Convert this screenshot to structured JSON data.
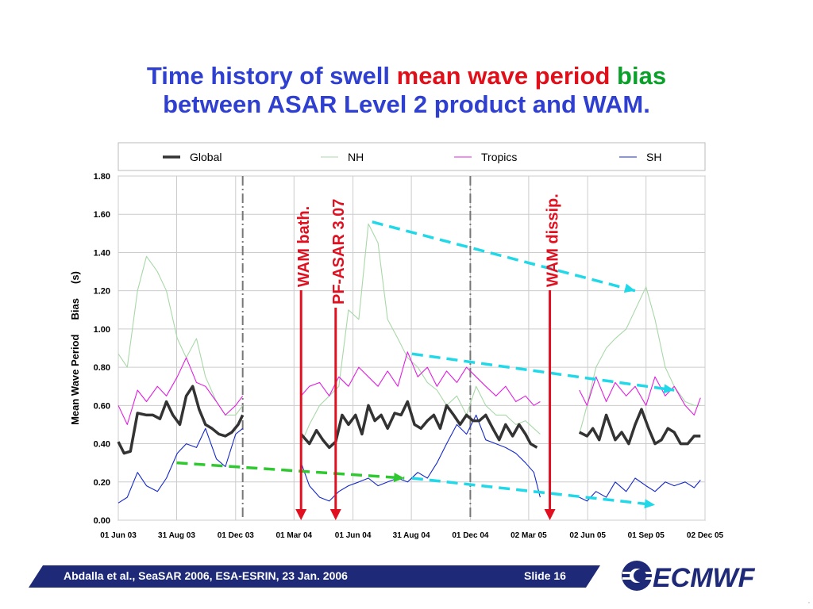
{
  "slide": {
    "title_line1_part1": "Time history of swell",
    "title_line1_part2": "mean wave period",
    "title_line1_part3": "bias",
    "title_line2": "between ASAR Level 2 product and WAM."
  },
  "footer": {
    "citation": "Abdalla et al.,  SeaSAR 2006,  ESA-ESRIN,  23 Jan. 2006",
    "slide_number": "Slide 16",
    "logo_text": "ECMWF"
  },
  "chart_data": {
    "type": "line",
    "title": "",
    "xlabel": "",
    "ylabel": "Mean Wave Period     Bias     (s)",
    "ylim": [
      0.0,
      1.8
    ],
    "yticks": [
      "0.00",
      "0.20",
      "0.40",
      "0.60",
      "0.80",
      "1.00",
      "1.20",
      "1.40",
      "1.60",
      "1.80"
    ],
    "xlim": [
      "2003-06-01",
      "2005-12-02"
    ],
    "xticks": [
      {
        "date": "2003-06-01",
        "label": "01 Jun 03"
      },
      {
        "date": "2003-08-31",
        "label": "31 Aug 03"
      },
      {
        "date": "2003-12-01",
        "label": "01 Dec 03"
      },
      {
        "date": "2004-03-01",
        "label": "01 Mar 04"
      },
      {
        "date": "2004-06-01",
        "label": "01 Jun 04"
      },
      {
        "date": "2004-08-31",
        "label": "31 Aug 04"
      },
      {
        "date": "2004-12-01",
        "label": "01 Dec 04"
      },
      {
        "date": "2005-03-02",
        "label": "02 Mar 05"
      },
      {
        "date": "2005-06-02",
        "label": "02 Jun 05"
      },
      {
        "date": "2005-09-01",
        "label": "01 Sep 05"
      },
      {
        "date": "2005-12-02",
        "label": "02 Dec 05"
      }
    ],
    "grid": true,
    "legend_position": "top",
    "series": [
      {
        "name": "Global",
        "color": "#333333",
        "x": [
          "2003-06-01",
          "2003-06-10",
          "2003-06-20",
          "2003-07-01",
          "2003-07-15",
          "2003-07-25",
          "2003-08-05",
          "2003-08-15",
          "2003-08-25",
          "2003-09-05",
          "2003-09-15",
          "2003-09-25",
          "2003-10-05",
          "2003-10-15",
          "2003-10-25",
          "2003-11-05",
          "2003-11-15",
          "2003-11-25",
          "2003-12-05",
          "2003-12-12",
          null,
          "2004-03-12",
          "2004-03-25",
          "2004-04-05",
          "2004-04-15",
          "2004-04-25",
          "2004-05-05",
          "2004-05-15",
          "2004-05-25",
          "2004-06-05",
          "2004-06-15",
          "2004-06-25",
          "2004-07-05",
          "2004-07-15",
          "2004-07-25",
          "2004-08-05",
          "2004-08-15",
          "2004-08-25",
          "2004-09-05",
          "2004-09-15",
          "2004-09-25",
          "2004-10-05",
          "2004-10-15",
          "2004-10-25",
          "2004-11-05",
          "2004-11-15",
          "2004-11-25",
          "2004-12-05",
          "2004-12-15",
          "2004-12-25",
          "2005-01-05",
          "2005-01-15",
          "2005-01-25",
          "2005-02-05",
          "2005-02-15",
          "2005-02-25",
          "2005-03-05",
          "2005-03-15",
          null,
          "2005-05-20",
          "2005-06-01",
          "2005-06-10",
          "2005-06-20",
          "2005-07-01",
          "2005-07-15",
          "2005-07-25",
          "2005-08-05",
          "2005-08-15",
          "2005-08-25",
          "2005-09-05",
          "2005-09-15",
          "2005-09-25",
          "2005-10-05",
          "2005-10-15",
          "2005-10-25",
          "2005-11-05",
          "2005-11-15",
          "2005-11-25"
        ],
        "values": [
          0.41,
          0.35,
          0.36,
          0.56,
          0.55,
          0.55,
          0.53,
          0.62,
          0.55,
          0.5,
          0.65,
          0.7,
          0.58,
          0.5,
          0.48,
          0.45,
          0.44,
          0.46,
          0.5,
          0.55,
          null,
          0.45,
          0.4,
          0.47,
          0.42,
          0.38,
          0.41,
          0.55,
          0.5,
          0.55,
          0.45,
          0.6,
          0.52,
          0.55,
          0.48,
          0.56,
          0.55,
          0.62,
          0.5,
          0.48,
          0.52,
          0.55,
          0.48,
          0.6,
          0.55,
          0.5,
          0.55,
          0.52,
          0.52,
          0.55,
          0.48,
          0.42,
          0.5,
          0.44,
          0.5,
          0.45,
          0.4,
          0.38,
          null,
          0.46,
          0.44,
          0.48,
          0.42,
          0.55,
          0.42,
          0.46,
          0.4,
          0.5,
          0.58,
          0.48,
          0.4,
          0.42,
          0.48,
          0.46,
          0.4,
          0.4,
          0.44,
          0.44
        ]
      },
      {
        "name": "NH",
        "color": "#a8d8a8",
        "x": [
          "2003-06-01",
          "2003-06-15",
          "2003-07-01",
          "2003-07-15",
          "2003-08-01",
          "2003-08-15",
          "2003-09-01",
          "2003-09-15",
          "2003-10-01",
          "2003-10-15",
          "2003-11-01",
          "2003-11-15",
          "2003-12-01",
          "2003-12-12",
          null,
          "2004-03-12",
          "2004-03-25",
          "2004-04-10",
          "2004-04-25",
          "2004-05-10",
          "2004-05-25",
          "2004-06-10",
          "2004-06-25",
          "2004-07-10",
          "2004-07-25",
          "2004-08-10",
          "2004-08-25",
          "2004-09-10",
          "2004-09-25",
          "2004-10-10",
          "2004-10-25",
          "2004-11-10",
          "2004-11-25",
          "2004-12-10",
          "2004-12-25",
          "2005-01-10",
          "2005-01-25",
          "2005-02-10",
          "2005-02-25",
          "2005-03-10",
          "2005-03-20",
          null,
          "2005-05-20",
          "2005-06-01",
          "2005-06-15",
          "2005-07-01",
          "2005-07-15",
          "2005-08-01",
          "2005-08-15",
          "2005-09-01",
          "2005-09-15",
          "2005-10-01",
          "2005-10-15",
          "2005-11-01",
          "2005-11-15",
          "2005-11-25"
        ],
        "values": [
          0.87,
          0.8,
          1.2,
          1.38,
          1.3,
          1.2,
          0.95,
          0.85,
          0.95,
          0.75,
          0.62,
          0.55,
          0.55,
          0.6,
          null,
          0.4,
          0.5,
          0.6,
          0.65,
          0.7,
          1.1,
          1.05,
          1.55,
          1.45,
          1.05,
          0.95,
          0.85,
          0.8,
          0.72,
          0.68,
          0.6,
          0.65,
          0.55,
          0.7,
          0.6,
          0.55,
          0.55,
          0.5,
          0.52,
          0.48,
          0.45,
          null,
          0.45,
          0.6,
          0.8,
          0.9,
          0.95,
          1.0,
          1.1,
          1.22,
          1.05,
          0.8,
          0.7,
          0.62,
          0.6,
          0.6
        ]
      },
      {
        "name": "Tropics",
        "color": "#e020e0",
        "x": [
          "2003-06-01",
          "2003-06-15",
          "2003-07-01",
          "2003-07-15",
          "2003-08-01",
          "2003-08-15",
          "2003-09-01",
          "2003-09-15",
          "2003-10-01",
          "2003-10-15",
          "2003-11-01",
          "2003-11-15",
          "2003-12-01",
          "2003-12-12",
          null,
          "2004-03-12",
          "2004-03-25",
          "2004-04-10",
          "2004-04-25",
          "2004-05-10",
          "2004-05-25",
          "2004-06-10",
          "2004-06-25",
          "2004-07-10",
          "2004-07-25",
          "2004-08-10",
          "2004-08-25",
          "2004-09-10",
          "2004-09-25",
          "2004-10-10",
          "2004-10-25",
          "2004-11-10",
          "2004-11-25",
          "2004-12-10",
          "2004-12-25",
          "2005-01-10",
          "2005-01-25",
          "2005-02-10",
          "2005-02-25",
          "2005-03-10",
          "2005-03-20",
          null,
          "2005-05-20",
          "2005-06-01",
          "2005-06-15",
          "2005-07-01",
          "2005-07-15",
          "2005-08-01",
          "2005-08-15",
          "2005-09-01",
          "2005-09-15",
          "2005-10-01",
          "2005-10-15",
          "2005-11-01",
          "2005-11-15",
          "2005-11-25"
        ],
        "values": [
          0.6,
          0.5,
          0.68,
          0.62,
          0.7,
          0.65,
          0.75,
          0.85,
          0.72,
          0.7,
          0.62,
          0.55,
          0.6,
          0.65,
          null,
          0.65,
          0.7,
          0.72,
          0.65,
          0.75,
          0.7,
          0.8,
          0.75,
          0.7,
          0.78,
          0.7,
          0.88,
          0.75,
          0.8,
          0.7,
          0.78,
          0.72,
          0.8,
          0.75,
          0.7,
          0.65,
          0.7,
          0.62,
          0.65,
          0.6,
          0.62,
          null,
          0.68,
          0.6,
          0.75,
          0.62,
          0.72,
          0.65,
          0.7,
          0.6,
          0.75,
          0.65,
          0.7,
          0.6,
          0.55,
          0.64
        ]
      },
      {
        "name": "SH",
        "color": "#1428c8",
        "x": [
          "2003-06-01",
          "2003-06-15",
          "2003-07-01",
          "2003-07-15",
          "2003-08-01",
          "2003-08-15",
          "2003-09-01",
          "2003-09-15",
          "2003-10-01",
          "2003-10-15",
          "2003-11-01",
          "2003-11-15",
          "2003-12-01",
          "2003-12-12",
          null,
          "2004-03-12",
          "2004-03-25",
          "2004-04-10",
          "2004-04-25",
          "2004-05-10",
          "2004-05-25",
          "2004-06-10",
          "2004-06-25",
          "2004-07-10",
          "2004-07-25",
          "2004-08-10",
          "2004-08-25",
          "2004-09-10",
          "2004-09-25",
          "2004-10-10",
          "2004-10-25",
          "2004-11-10",
          "2004-11-25",
          "2004-12-10",
          "2004-12-25",
          "2005-01-10",
          "2005-01-25",
          "2005-02-10",
          "2005-02-25",
          "2005-03-10",
          "2005-03-20",
          null,
          "2005-05-20",
          "2005-06-01",
          "2005-06-15",
          "2005-07-01",
          "2005-07-15",
          "2005-08-01",
          "2005-08-15",
          "2005-09-01",
          "2005-09-15",
          "2005-10-01",
          "2005-10-15",
          "2005-11-01",
          "2005-11-15",
          "2005-11-25"
        ],
        "values": [
          0.09,
          0.12,
          0.25,
          0.18,
          0.15,
          0.22,
          0.35,
          0.4,
          0.38,
          0.48,
          0.32,
          0.28,
          0.45,
          0.48,
          null,
          0.3,
          0.18,
          0.12,
          0.1,
          0.15,
          0.18,
          0.2,
          0.22,
          0.18,
          0.2,
          0.22,
          0.2,
          0.25,
          0.22,
          0.3,
          0.4,
          0.5,
          0.45,
          0.55,
          0.42,
          0.4,
          0.38,
          0.35,
          0.3,
          0.25,
          0.12,
          null,
          0.12,
          0.1,
          0.15,
          0.12,
          0.2,
          0.15,
          0.22,
          0.18,
          0.15,
          0.2,
          0.18,
          0.2,
          0.17,
          0.21
        ]
      }
    ],
    "event_markers": [
      {
        "date": "2003-12-12",
        "style": "dash-dot",
        "color": "#777777"
      },
      {
        "date": "2004-12-01",
        "style": "dash-dot",
        "color": "#777777"
      }
    ],
    "annotations": [
      {
        "text": "WAM bath.",
        "date": "2004-03-12",
        "color": "#e01020"
      },
      {
        "text": "PF-ASAR 3.07",
        "date": "2004-05-05",
        "color": "#e01020"
      },
      {
        "text": "WAM dissip.",
        "date": "2005-04-04",
        "color": "#e01020"
      }
    ],
    "trend_arrows": [
      {
        "color": "#20d8e8",
        "from": {
          "date": "2004-07-01",
          "value": 1.56
        },
        "to": {
          "date": "2005-08-15",
          "value": 1.2
        }
      },
      {
        "color": "#20d8e8",
        "from": {
          "date": "2004-09-01",
          "value": 0.87
        },
        "to": {
          "date": "2005-10-15",
          "value": 0.68
        }
      },
      {
        "color": "#20d8e8",
        "from": {
          "date": "2004-09-01",
          "value": 0.22
        },
        "to": {
          "date": "2005-09-15",
          "value": 0.08
        }
      },
      {
        "color": "#30c830",
        "from": {
          "date": "2003-08-31",
          "value": 0.3
        },
        "to": {
          "date": "2004-08-20",
          "value": 0.22
        }
      }
    ]
  }
}
